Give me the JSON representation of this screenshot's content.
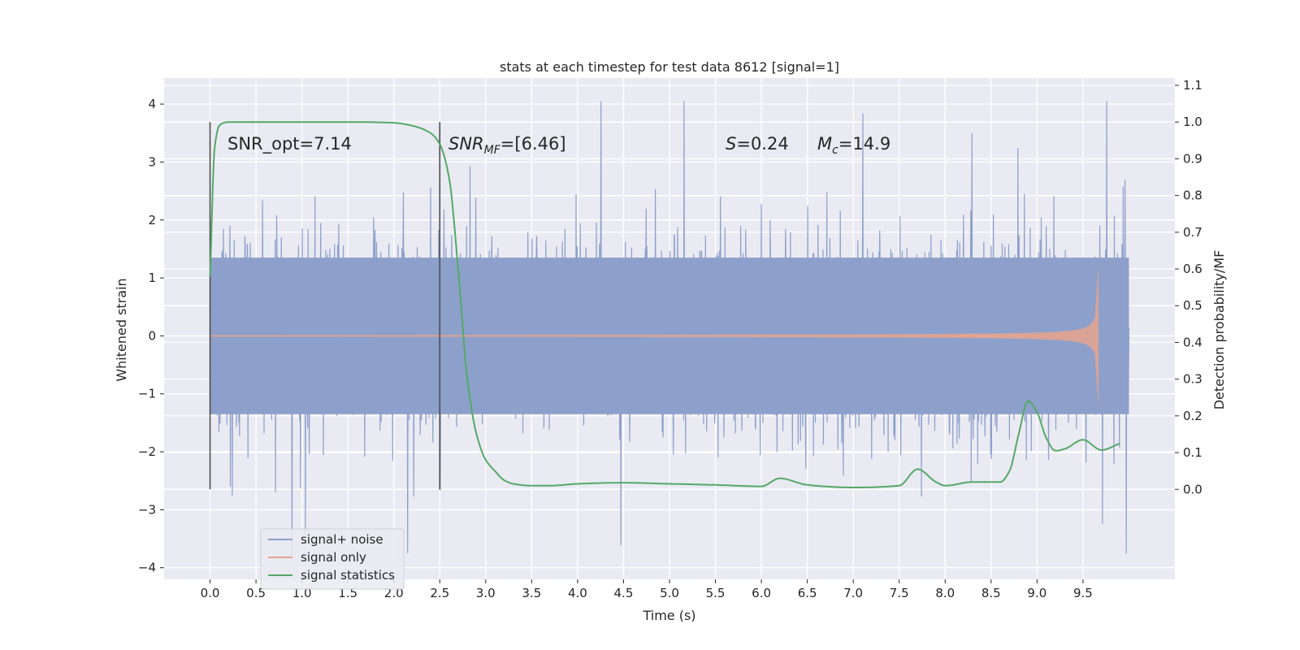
{
  "chart_data": {
    "type": "line",
    "title": "stats at each timestep for test data 8612 [signal=1]",
    "xlabel": "Time (s)",
    "ylabel_left": "Whitened strain",
    "ylabel_right": "Detection probability/MF",
    "xlim": [
      -0.5,
      10.5
    ],
    "ylim_left": [
      -4.2,
      4.45
    ],
    "ylim_right": [
      -0.245,
      1.12
    ],
    "xticks": [
      "0.0",
      "0.5",
      "1.0",
      "1.5",
      "2.0",
      "2.5",
      "3.0",
      "3.5",
      "4.0",
      "4.5",
      "5.0",
      "5.5",
      "6.0",
      "6.5",
      "7.0",
      "7.5",
      "8.0",
      "8.5",
      "9.0",
      "9.5"
    ],
    "yticks_left": [
      "4",
      "3",
      "2",
      "1",
      "0",
      "−1",
      "−2",
      "−3",
      "−4"
    ],
    "yticks_right": [
      "1.1",
      "1.0",
      "0.9",
      "0.8",
      "0.7",
      "0.6",
      "0.5",
      "0.4",
      "0.3",
      "0.2",
      "0.1",
      "0.0"
    ],
    "grid": true,
    "legend_position": "lower-left",
    "annotations": {
      "snr_opt": "SNR_opt=7.14",
      "snr_mf_var": "SNR",
      "snr_mf_sub": "MF",
      "snr_mf_val": "=[6.46]",
      "s_var": "S",
      "s_val": "=0.24",
      "mc_var": "M",
      "mc_sub": "c",
      "mc_val": "=14.9"
    },
    "vlines_x": [
      0.0,
      2.5
    ],
    "series": [
      {
        "name": "signal+ noise",
        "color": "#8da0cb",
        "envelope": {
          "x_start": 0.0,
          "x_end": 10.0,
          "core_amplitude": 1.35,
          "peak_max": 4.05,
          "trough_min": -3.85
        }
      },
      {
        "name": "signal only",
        "color": "#e5a48e",
        "chirp": {
          "x_start": 0.0,
          "x_end": 9.67,
          "peak_amplitude": 1.5
        }
      },
      {
        "name": "signal statistics",
        "color": "#55a868",
        "x": [
          0.0,
          0.05,
          0.1,
          0.15,
          0.2,
          0.4,
          0.8,
          1.2,
          1.6,
          2.0,
          2.2,
          2.4,
          2.5,
          2.6,
          2.7,
          2.8,
          2.9,
          3.0,
          3.1,
          3.2,
          3.3,
          3.5,
          3.7,
          4.0,
          4.5,
          5.0,
          5.5,
          6.0,
          6.2,
          6.5,
          7.0,
          7.5,
          7.7,
          7.9,
          8.0,
          8.3,
          8.6,
          8.7,
          8.8,
          8.9,
          9.0,
          9.1,
          9.2,
          9.3,
          9.5,
          9.7,
          9.9
        ],
        "y": [
          0.58,
          0.93,
          0.99,
          0.998,
          1.0,
          1.0,
          1.0,
          1.0,
          1.0,
          0.998,
          0.99,
          0.97,
          0.94,
          0.85,
          0.6,
          0.3,
          0.15,
          0.08,
          0.05,
          0.025,
          0.015,
          0.01,
          0.01,
          0.015,
          0.018,
          0.015,
          0.012,
          0.008,
          0.03,
          0.012,
          0.005,
          0.01,
          0.055,
          0.02,
          0.01,
          0.02,
          0.02,
          0.05,
          0.15,
          0.24,
          0.21,
          0.14,
          0.105,
          0.11,
          0.135,
          0.107,
          0.125
        ]
      }
    ]
  }
}
